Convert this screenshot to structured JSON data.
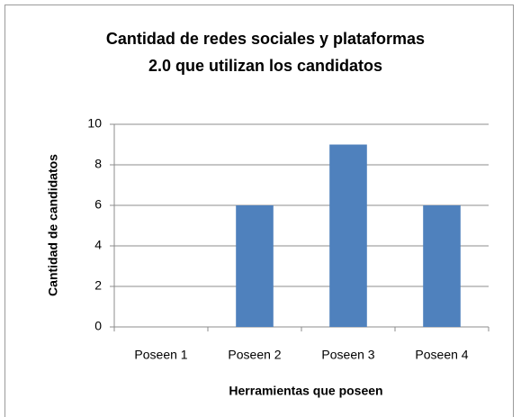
{
  "chart_data": {
    "type": "bar",
    "title": "Cantidad de redes sociales y plataformas 2.0 que utilizan los candidatos",
    "x_label": "Herramientas que poseen",
    "y_label": "Cantidad de candidatos",
    "categories": [
      "Poseen 1",
      "Poseen 2",
      "Poseen 3",
      "Poseen 4"
    ],
    "values": [
      0,
      6,
      9,
      6
    ],
    "color": "#4f81bd",
    "ylim": [
      0,
      10
    ],
    "yticks": [
      0,
      2,
      4,
      6,
      8,
      10
    ],
    "grid": true
  }
}
